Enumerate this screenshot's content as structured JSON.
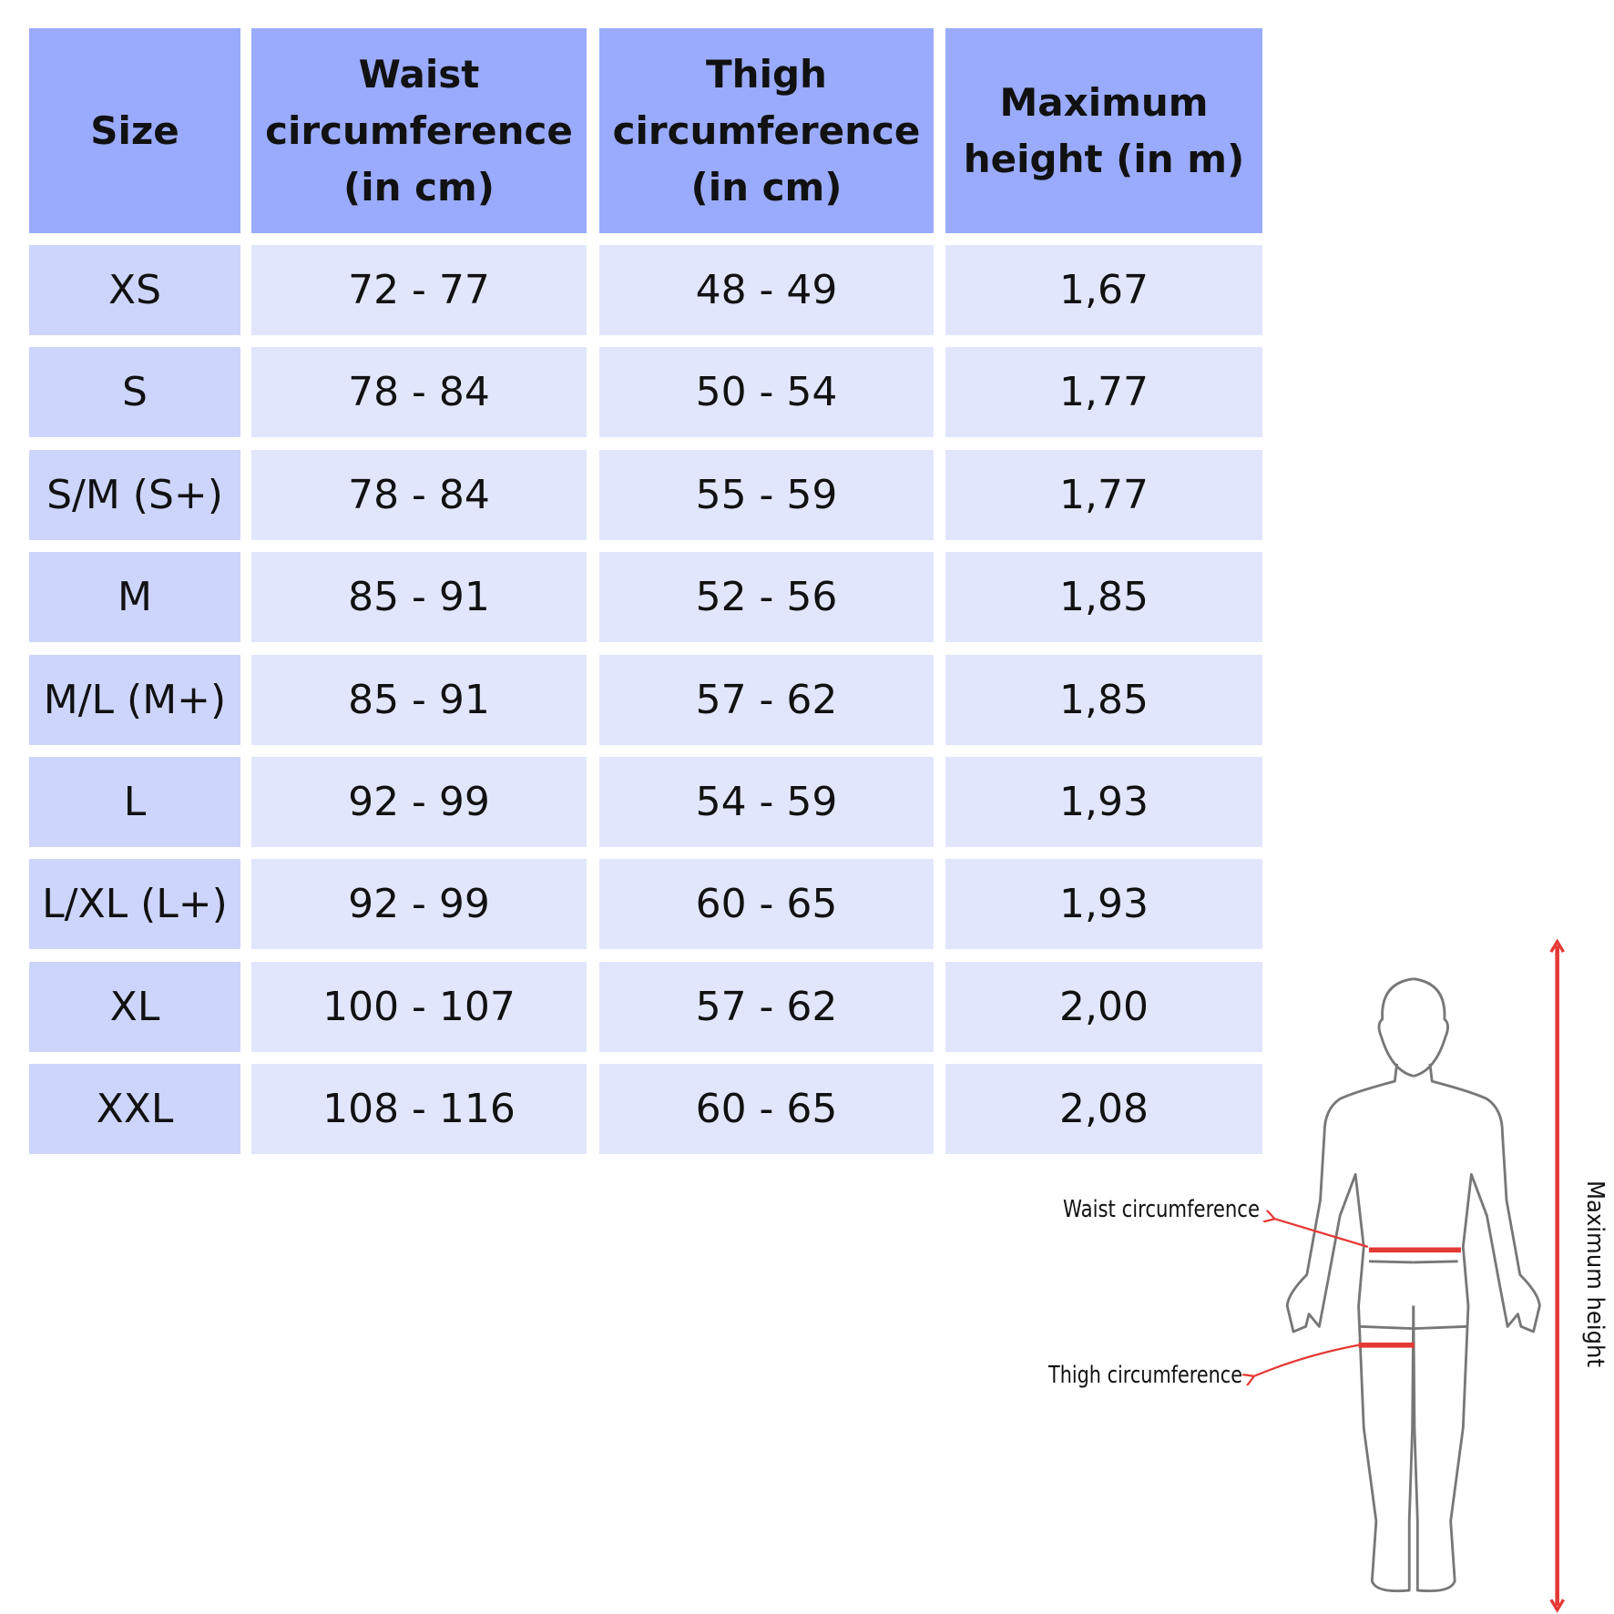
{
  "table": {
    "columns": [
      "Size",
      "Waist circumference (in cm)",
      "Thigh circumference (in cm)",
      "Maximum height (in m)"
    ],
    "rows": [
      [
        "XS",
        "72 - 77",
        "48 - 49",
        "1,67"
      ],
      [
        "S",
        "78 - 84",
        "50 - 54",
        "1,77"
      ],
      [
        "S/M (S+)",
        "78 - 84",
        "55 - 59",
        "1,77"
      ],
      [
        "M",
        "85 - 91",
        "52 - 56",
        "1,85"
      ],
      [
        "M/L (M+)",
        "85 - 91",
        "57 - 62",
        "1,85"
      ],
      [
        "L",
        "92 - 99",
        "54 - 59",
        "1,93"
      ],
      [
        "L/XL (L+)",
        "92 - 99",
        "60 - 65",
        "1,93"
      ],
      [
        "XL",
        "100 - 107",
        "57 - 62",
        "2,00"
      ],
      [
        "XXL",
        "108 - 116",
        "60 - 65",
        "2,08"
      ]
    ]
  },
  "figure": {
    "waist_label": "Waist circumference",
    "thigh_label": "Thigh circumference",
    "height_label": "Maximum height"
  }
}
